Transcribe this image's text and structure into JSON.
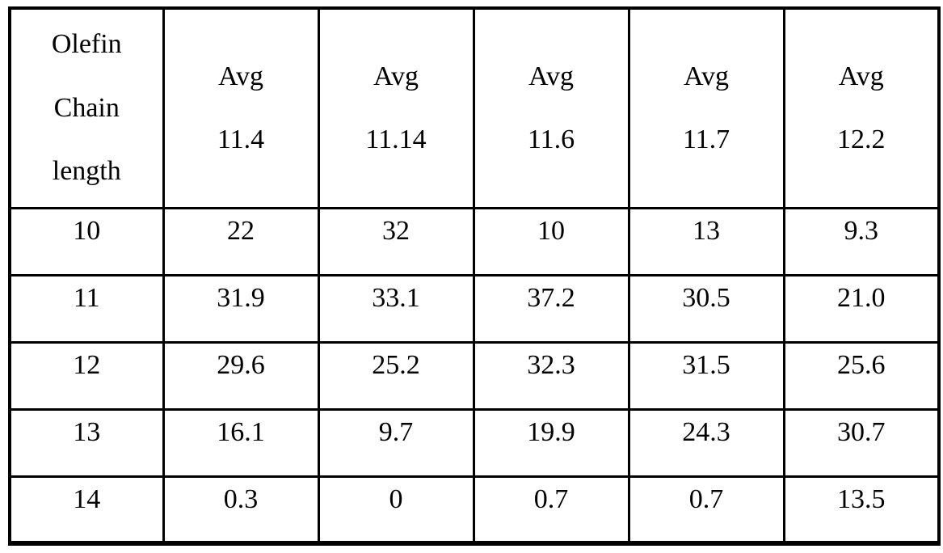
{
  "table": {
    "header": {
      "row_label_lines": [
        "Olefin",
        "Chain",
        "length"
      ],
      "columns": [
        {
          "label": "Avg",
          "value": "11.4"
        },
        {
          "label": "Avg",
          "value": "11.14"
        },
        {
          "label": "Avg",
          "value": "11.6"
        },
        {
          "label": "Avg",
          "value": "11.7"
        },
        {
          "label": "Avg",
          "value": "12.2"
        }
      ]
    },
    "rows": [
      {
        "chain_length": "10",
        "values": [
          "22",
          "32",
          "10",
          "13",
          "9.3"
        ]
      },
      {
        "chain_length": "11",
        "values": [
          "31.9",
          "33.1",
          "37.2",
          "30.5",
          "21.0"
        ]
      },
      {
        "chain_length": "12",
        "values": [
          "29.6",
          "25.2",
          "32.3",
          "31.5",
          "25.6"
        ]
      },
      {
        "chain_length": "13",
        "values": [
          "16.1",
          "9.7",
          "19.9",
          "24.3",
          "30.7"
        ]
      },
      {
        "chain_length": "14",
        "values": [
          "0.3",
          "0",
          "0.7",
          "0.7",
          "13.5"
        ]
      }
    ]
  },
  "colors": {
    "border": "#000000",
    "background": "#ffffff",
    "text": "#000000"
  }
}
